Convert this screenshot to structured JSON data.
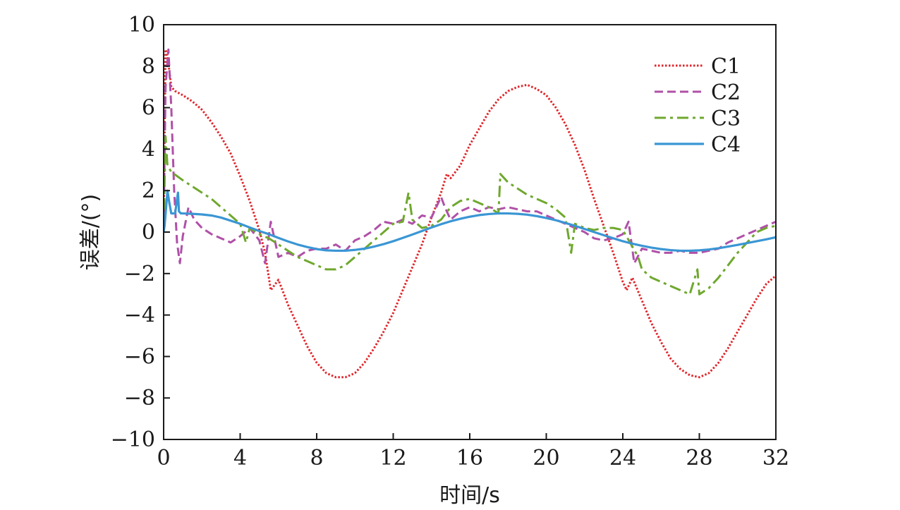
{
  "chart_data": {
    "type": "line",
    "title": "",
    "xlabel": "时间/s",
    "ylabel": "误差/(°)",
    "xlim": [
      0,
      32
    ],
    "ylim": [
      -10,
      10
    ],
    "xticks": [
      0,
      4,
      8,
      12,
      16,
      20,
      24,
      28,
      32
    ],
    "yticks": [
      -10,
      -8,
      -6,
      -4,
      -2,
      0,
      2,
      4,
      6,
      8,
      10
    ],
    "xtick_labels": [
      "0",
      "4",
      "8",
      "12",
      "16",
      "20",
      "24",
      "28",
      "32"
    ],
    "ytick_labels": [
      "−10",
      "−8",
      "−6",
      "−4",
      "−2",
      "0",
      "2",
      "4",
      "6",
      "8",
      "10"
    ],
    "grid": false,
    "legend_position": "top-right",
    "series": [
      {
        "name": "C1",
        "color": "#e0262b",
        "style": "dotted",
        "x": [
          0,
          0.1,
          0.2,
          0.4,
          0.6,
          1.0,
          1.5,
          2.0,
          2.5,
          3.0,
          3.5,
          4.0,
          4.5,
          5.0,
          5.3,
          5.6,
          6.0,
          6.5,
          7.0,
          7.5,
          8.0,
          8.5,
          9.0,
          9.5,
          10.0,
          10.5,
          11.0,
          11.5,
          12.0,
          12.5,
          13.0,
          13.5,
          14.0,
          14.5,
          14.8,
          15.0,
          15.5,
          16.0,
          16.5,
          17.0,
          17.5,
          18.0,
          18.5,
          19.0,
          19.5,
          20.0,
          20.5,
          21.0,
          21.5,
          22.0,
          22.5,
          23.0,
          23.5,
          24.0,
          24.2,
          24.5,
          25.0,
          25.5,
          26.0,
          26.5,
          27.0,
          27.5,
          28.0,
          28.5,
          29.0,
          29.5,
          30.0,
          30.5,
          31.0,
          31.5,
          32.0
        ],
        "y": [
          0,
          8.8,
          8.5,
          7.0,
          6.8,
          6.6,
          6.3,
          5.9,
          5.3,
          4.6,
          3.8,
          2.7,
          1.5,
          0.1,
          -1.0,
          -2.8,
          -2.3,
          -3.5,
          -4.5,
          -5.5,
          -6.3,
          -6.8,
          -7.0,
          -7.0,
          -6.8,
          -6.3,
          -5.6,
          -4.8,
          -3.9,
          -2.8,
          -1.7,
          -0.6,
          0.7,
          1.9,
          2.8,
          2.6,
          3.2,
          4.2,
          5.0,
          5.8,
          6.4,
          6.8,
          7.0,
          7.1,
          6.9,
          6.6,
          6.0,
          5.2,
          4.2,
          3.0,
          1.6,
          0.3,
          -1.0,
          -2.4,
          -2.8,
          -2.2,
          -3.3,
          -4.4,
          -5.3,
          -6.1,
          -6.6,
          -6.9,
          -7.0,
          -6.8,
          -6.3,
          -5.6,
          -4.8,
          -4.0,
          -3.2,
          -2.5,
          -2.1
        ]
      },
      {
        "name": "C2",
        "color": "#b050a8",
        "style": "dashed",
        "x": [
          0,
          0.1,
          0.25,
          0.4,
          0.55,
          0.7,
          0.85,
          1.0,
          1.3,
          1.6,
          2.0,
          2.5,
          3.0,
          3.5,
          4.0,
          4.5,
          5.0,
          5.3,
          5.6,
          6.0,
          6.5,
          7.0,
          7.5,
          8.0,
          8.5,
          9.0,
          9.5,
          10.0,
          10.5,
          11.0,
          11.5,
          12.0,
          12.5,
          13.0,
          13.5,
          14.0,
          14.5,
          14.7,
          15.0,
          15.5,
          16.0,
          16.5,
          17.0,
          17.5,
          18.0,
          18.5,
          19.0,
          19.5,
          20.0,
          20.5,
          21.0,
          21.5,
          22.0,
          22.5,
          23.0,
          23.5,
          24.0,
          24.3,
          24.6,
          25.0,
          25.5,
          26.0,
          26.5,
          27.0,
          27.5,
          28.0,
          28.5,
          29.0,
          29.5,
          30.0,
          30.5,
          31.0,
          31.5,
          32.0
        ],
        "y": [
          0,
          7.0,
          8.8,
          6.0,
          2.0,
          -0.5,
          -1.5,
          -0.2,
          1.2,
          0.6,
          0.2,
          -0.1,
          -0.3,
          -0.5,
          -0.2,
          0.2,
          -0.4,
          -1.5,
          0.5,
          -1.2,
          -1.0,
          -1.2,
          -0.9,
          -0.8,
          -0.8,
          -0.6,
          -0.9,
          -0.4,
          -0.2,
          0.1,
          0.5,
          0.4,
          0.6,
          0.4,
          0.8,
          0.7,
          1.7,
          1.2,
          0.6,
          1.0,
          1.2,
          1.0,
          1.2,
          1.1,
          1.2,
          1.1,
          1.0,
          1.0,
          0.8,
          0.6,
          0.4,
          0.2,
          0.0,
          -0.3,
          -0.4,
          -0.3,
          -0.1,
          0.5,
          -1.5,
          -0.8,
          -0.9,
          -1.0,
          -1.0,
          -0.9,
          -1.0,
          -1.0,
          -0.9,
          -0.8,
          -0.5,
          -0.3,
          -0.1,
          0.1,
          0.3,
          0.5
        ]
      },
      {
        "name": "C3",
        "color": "#6fa82e",
        "style": "dashdot",
        "x": [
          0,
          0.1,
          0.2,
          0.4,
          0.7,
          1.0,
          1.5,
          2.0,
          2.5,
          3.0,
          3.5,
          4.0,
          4.3,
          4.5,
          5.0,
          5.5,
          6.0,
          6.5,
          7.0,
          7.5,
          8.0,
          8.5,
          9.0,
          9.5,
          10.0,
          10.5,
          11.0,
          11.5,
          12.0,
          12.5,
          12.8,
          13.0,
          13.5,
          14.0,
          14.5,
          15.0,
          15.5,
          16.0,
          16.5,
          17.0,
          17.5,
          17.6,
          18.0,
          18.5,
          19.0,
          19.5,
          20.0,
          20.5,
          21.0,
          21.3,
          21.5,
          22.0,
          22.5,
          23.0,
          23.5,
          24.0,
          24.5,
          24.8,
          25.0,
          25.5,
          26.0,
          26.5,
          27.0,
          27.5,
          27.9,
          28.0,
          28.5,
          29.0,
          29.5,
          30.0,
          30.5,
          31.0,
          31.5,
          32.0
        ],
        "y": [
          0,
          4.6,
          3.2,
          2.9,
          2.7,
          2.5,
          2.2,
          1.9,
          1.6,
          1.2,
          0.8,
          0.4,
          -0.5,
          0.2,
          -0.1,
          -0.3,
          -0.6,
          -0.9,
          -1.2,
          -1.4,
          -1.6,
          -1.8,
          -1.8,
          -1.6,
          -1.2,
          -0.8,
          -0.4,
          0.0,
          0.4,
          0.5,
          1.9,
          0.6,
          0.2,
          0.3,
          0.6,
          1.2,
          1.5,
          1.6,
          1.4,
          1.2,
          0.9,
          2.8,
          2.4,
          2.1,
          1.8,
          1.6,
          1.4,
          1.1,
          0.7,
          -1.0,
          0.4,
          0.2,
          0.1,
          0.2,
          0.2,
          0.1,
          -0.7,
          -1.2,
          -1.8,
          -2.2,
          -2.4,
          -2.6,
          -2.8,
          -3.0,
          -1.8,
          -3.0,
          -2.7,
          -2.2,
          -1.6,
          -1.0,
          -0.5,
          0.0,
          0.2,
          0.3
        ]
      },
      {
        "name": "C4",
        "color": "#3a96d4",
        "style": "solid",
        "x": [
          0,
          0.05,
          0.2,
          0.3,
          0.4,
          0.6,
          0.75,
          0.8,
          0.9,
          1.0,
          1.5,
          2.0,
          2.5,
          3.0,
          3.5,
          4.0,
          4.5,
          5.0,
          5.5,
          6.0,
          6.5,
          7.0,
          7.5,
          8.0,
          8.5,
          9.0,
          9.5,
          10.0,
          10.5,
          11.0,
          11.5,
          12.0,
          12.5,
          13.0,
          13.5,
          14.0,
          14.5,
          15.0,
          15.5,
          16.0,
          16.5,
          17.0,
          17.5,
          18.0,
          18.5,
          19.0,
          19.5,
          20.0,
          20.5,
          21.0,
          21.5,
          22.0,
          22.5,
          23.0,
          23.5,
          24.0,
          24.5,
          25.0,
          25.5,
          26.0,
          26.5,
          27.0,
          27.5,
          28.0,
          28.5,
          29.0,
          29.5,
          30.0,
          30.5,
          31.0,
          31.5,
          32.0
        ],
        "y": [
          0,
          0.3,
          2.0,
          1.4,
          0.9,
          0.9,
          1.9,
          1.0,
          0.9,
          0.9,
          0.88,
          0.85,
          0.8,
          0.7,
          0.55,
          0.4,
          0.22,
          0.05,
          -0.1,
          -0.28,
          -0.45,
          -0.6,
          -0.72,
          -0.82,
          -0.88,
          -0.9,
          -0.9,
          -0.86,
          -0.8,
          -0.7,
          -0.58,
          -0.44,
          -0.28,
          -0.12,
          0.05,
          0.22,
          0.38,
          0.52,
          0.64,
          0.74,
          0.82,
          0.87,
          0.9,
          0.9,
          0.88,
          0.84,
          0.77,
          0.68,
          0.57,
          0.44,
          0.3,
          0.15,
          0.0,
          -0.15,
          -0.3,
          -0.44,
          -0.56,
          -0.66,
          -0.75,
          -0.82,
          -0.87,
          -0.9,
          -0.9,
          -0.88,
          -0.84,
          -0.78,
          -0.7,
          -0.62,
          -0.53,
          -0.44,
          -0.35,
          -0.25
        ]
      }
    ]
  }
}
